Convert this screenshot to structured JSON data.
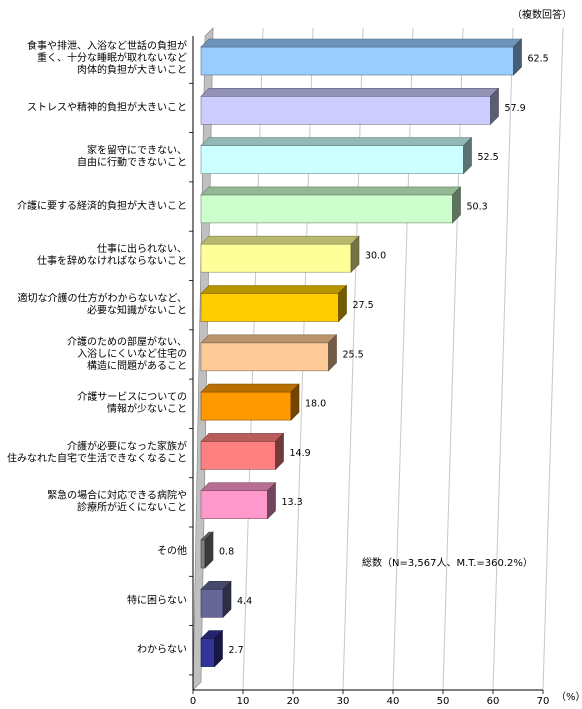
{
  "chart_data": {
    "type": "bar",
    "orientation": "horizontal",
    "multiple_answers_note": "（複数回答）",
    "total_note": "総数（N=3,567人、M.T.=360.2%）",
    "unit_label": "（%）",
    "xlim": [
      0,
      70
    ],
    "xticks": [
      "0",
      "10",
      "20",
      "30",
      "40",
      "50",
      "60",
      "70"
    ],
    "grid": true,
    "style": "3d",
    "categories": [
      [
        "食事や排泄、入浴など世話の負担が",
        "重く、十分な睡眠が取れないなど",
        "肉体的負担が大きいこと"
      ],
      [
        "ストレスや精神的負担が大きいこと"
      ],
      [
        "家を留守にできない、",
        "自由に行動できないこと"
      ],
      [
        "介護に要する経済的負担が大きいこと"
      ],
      [
        "仕事に出られない、",
        "仕事を辞めなければならないこと"
      ],
      [
        "適切な介護の仕方がわからないなど、",
        "必要な知識がないこと"
      ],
      [
        "介護のための部屋がない、",
        "入浴しにくいなど住宅の",
        "構造に問題があること"
      ],
      [
        "介護サービスについての",
        "情報が少ないこと"
      ],
      [
        "介護が必要になった家族が",
        "住みなれた自宅で生活できなくなること"
      ],
      [
        "緊急の場合に対応できる病院や",
        "診療所が近くにないこと"
      ],
      [
        "その他"
      ],
      [
        "特に困らない"
      ],
      [
        "わからない"
      ]
    ],
    "values": [
      62.5,
      57.9,
      52.5,
      50.3,
      30.0,
      27.5,
      25.5,
      18.0,
      14.9,
      13.3,
      0.8,
      4.4,
      2.7
    ],
    "value_labels": [
      "62.5",
      "57.9",
      "52.5",
      "50.3",
      "30.0",
      "27.5",
      "25.5",
      "18.0",
      "14.9",
      "13.3",
      "0.8",
      "4.4",
      "2.7"
    ],
    "colors": [
      "#99ccff",
      "#ccccff",
      "#ccffff",
      "#ccffcc",
      "#ffff99",
      "#ffcc00",
      "#ffcc99",
      "#ff9900",
      "#ff8080",
      "#ff99cc",
      "#808080",
      "#666699",
      "#333399"
    ]
  }
}
